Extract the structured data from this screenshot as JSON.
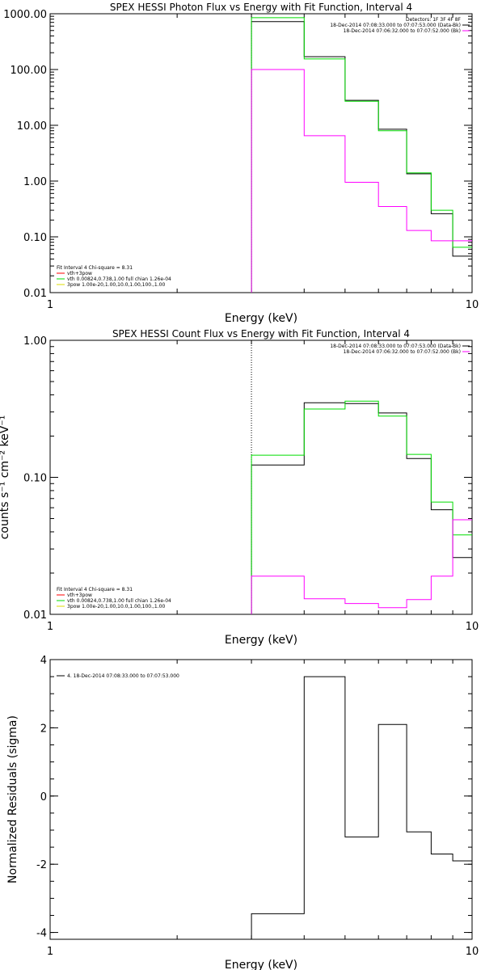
{
  "chart_data": [
    {
      "type": "line",
      "title": "SPEX HESSI Photon Flux vs Energy with Fit Function, Interval 4",
      "xlabel": "Energy (keV)",
      "ylabel": "",
      "xscale": "log",
      "yscale": "log",
      "xlim": [
        1,
        10
      ],
      "ylim": [
        0.01,
        1000
      ],
      "xticks": [
        {
          "v": 1,
          "label": "1"
        },
        {
          "v": 10,
          "label": "10"
        }
      ],
      "yticks": [
        {
          "v": 0.01,
          "label": "0.01"
        },
        {
          "v": 0.1,
          "label": "0.10"
        },
        {
          "v": 1,
          "label": "1.00"
        },
        {
          "v": 10,
          "label": "10.00"
        },
        {
          "v": 100,
          "label": "100.00"
        },
        {
          "v": 1000,
          "label": "1000.00"
        }
      ],
      "vline_x": 3.0,
      "bin_edges": [
        3,
        4,
        5,
        6,
        7,
        8,
        9,
        10
      ],
      "series": [
        {
          "values": [
            720,
            170,
            28,
            8.5,
            1.35,
            0.26,
            0.045
          ],
          "color": "#000000"
        },
        {
          "values": [
            850,
            155,
            27,
            8.0,
            1.4,
            0.3,
            0.065
          ],
          "color": "#00dd00"
        },
        {
          "values": [
            100,
            6.5,
            0.95,
            0.35,
            0.13,
            0.085,
            0.085
          ],
          "color": "#ff00ff"
        }
      ],
      "legend_right": [
        {
          "text": "Detectors: 1F 3F 4F 8F",
          "color": ""
        },
        {
          "text": "18-Dec-2014 07:08:33.000 to 07:07:53.000 (Data-Bk)",
          "color": "#000000"
        },
        {
          "text": "18-Dec-2014 07:06:32.000 to 07:07:52.000 (Bk)",
          "color": "#ff00ff"
        }
      ],
      "legend_left": [
        {
          "text": "Fit Interval 4   Chi-square = 8.31",
          "color": ""
        },
        {
          "text": "vth+3pow",
          "color": "#ff0000"
        },
        {
          "text": "vth 0.00824,0.738,1.00  full chian 1.26e-04",
          "color": "#00dd00"
        },
        {
          "text": "3pow 1.00e-20,1.00,10.0,1.00,100.,1.00",
          "color": "#dddd00"
        }
      ]
    },
    {
      "type": "line",
      "title": "SPEX HESSI Count Flux vs Energy with Fit Function, Interval 4",
      "xlabel": "Energy (keV)",
      "ylabel": "counts s⁻¹ cm⁻² keV⁻¹",
      "xscale": "log",
      "yscale": "log",
      "xlim": [
        1,
        10
      ],
      "ylim": [
        0.01,
        1.0
      ],
      "xticks": [
        {
          "v": 1,
          "label": "1"
        },
        {
          "v": 10,
          "label": "10"
        }
      ],
      "yticks": [
        {
          "v": 0.01,
          "label": "0.01"
        },
        {
          "v": 0.1,
          "label": "0.10"
        },
        {
          "v": 1,
          "label": "1.00"
        }
      ],
      "vline_x": 3.0,
      "bin_edges": [
        3,
        4,
        5,
        6,
        7,
        8,
        9,
        10
      ],
      "series": [
        {
          "values": [
            0.123,
            0.35,
            0.345,
            0.295,
            0.137,
            0.058,
            0.026
          ],
          "color": "#000000"
        },
        {
          "values": [
            0.145,
            0.315,
            0.36,
            0.28,
            0.147,
            0.066,
            0.038
          ],
          "color": "#00dd00"
        },
        {
          "values": [
            0.019,
            0.013,
            0.012,
            0.0112,
            0.0128,
            0.019,
            0.049
          ],
          "color": "#ff00ff"
        }
      ],
      "legend_right": [
        {
          "text": "18-Dec-2014 07:08:33.000 to 07:07:53.000 (Data-Bk)",
          "color": "#000000"
        },
        {
          "text": "18-Dec-2014 07:06:32.000 to 07:07:52.000 (Bk)",
          "color": "#ff00ff"
        }
      ],
      "legend_left": [
        {
          "text": "Fit Interval 4   Chi-square = 8.31",
          "color": ""
        },
        {
          "text": "vth+3pow",
          "color": "#ff0000"
        },
        {
          "text": "vth 0.00824,0.738,1.00  full chian 1.26e-04",
          "color": "#00dd00"
        },
        {
          "text": "3pow 1.00e-20,1.00,10.0,1.00,100.,1.00",
          "color": "#dddd00"
        }
      ]
    },
    {
      "type": "line",
      "title": "",
      "xlabel": "Energy (keV)",
      "ylabel": "Normalized Residuals (sigma)",
      "xscale": "log",
      "yscale": "linear",
      "xlim": [
        1,
        10
      ],
      "ylim": [
        -4.2,
        4
      ],
      "xticks": [
        {
          "v": 1,
          "label": "1"
        },
        {
          "v": 10,
          "label": "10"
        }
      ],
      "yticks": [
        {
          "v": -4,
          "label": "-4"
        },
        {
          "v": -2,
          "label": "-2"
        },
        {
          "v": 0,
          "label": "0"
        },
        {
          "v": 2,
          "label": "2"
        },
        {
          "v": 4,
          "label": "4"
        }
      ],
      "bin_edges": [
        3,
        4,
        5,
        6,
        7,
        8,
        9,
        10
      ],
      "series": [
        {
          "values": [
            -3.45,
            3.5,
            -1.2,
            2.1,
            -1.05,
            -1.7,
            -1.9
          ],
          "color": "#000000"
        }
      ],
      "legend_left": [
        {
          "text": "4. 18-Dec-2014 07:08:33.000 to 07:07:53.000",
          "color": "#000000"
        }
      ]
    }
  ]
}
